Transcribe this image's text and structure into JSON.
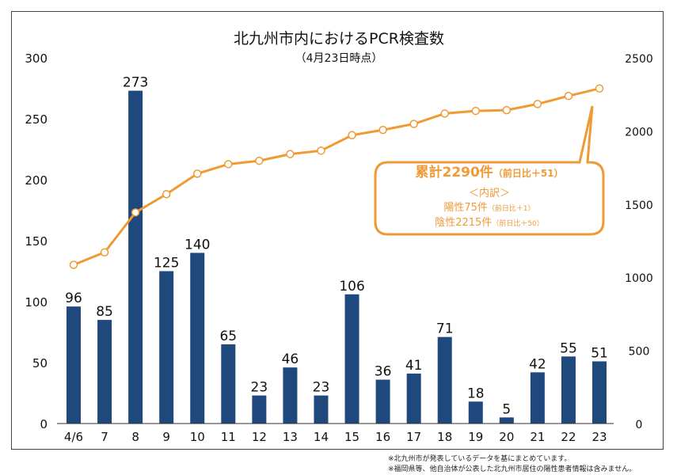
{
  "chart_data": {
    "type": "bar+line",
    "title": "北九州市内におけるPCR検査数",
    "subtitle": "（4月23日時点）",
    "categories": [
      "4/6",
      "7",
      "8",
      "9",
      "10",
      "11",
      "12",
      "13",
      "14",
      "15",
      "16",
      "17",
      "18",
      "19",
      "20",
      "21",
      "22",
      "23"
    ],
    "series": [
      {
        "name": "daily",
        "type": "bar",
        "axis": "left",
        "color": "#1f497d",
        "values": [
          96,
          85,
          273,
          125,
          140,
          65,
          23,
          46,
          23,
          106,
          36,
          41,
          71,
          18,
          5,
          42,
          55,
          51
        ]
      },
      {
        "name": "cumulative",
        "type": "line",
        "axis": "right",
        "color": "#f09a35",
        "values": [
          1085,
          1170,
          1443,
          1568,
          1708,
          1773,
          1796,
          1842,
          1865,
          1971,
          2007,
          2048,
          2119,
          2137,
          2142,
          2184,
          2239,
          2290
        ]
      }
    ],
    "left_axis": {
      "ylim": [
        0,
        300
      ],
      "ticks": [
        0,
        50,
        100,
        150,
        200,
        250,
        300
      ]
    },
    "right_axis": {
      "ylim": [
        0,
        2500
      ],
      "ticks": [
        0,
        500,
        1000,
        1500,
        2000,
        2500
      ]
    },
    "grid": false
  },
  "callout": {
    "total": "累計2290件",
    "total_diff": "（前日比＋51）",
    "breakdown": "＜内訳＞",
    "positive": "陽性75件",
    "positive_diff": "（前日比＋1）",
    "negative": "陰性2215件",
    "negative_diff": "（前日比＋50）"
  },
  "notes": [
    "※北九州市が発表しているデータを基にまとめています。",
    "※福岡県等、他自治体が公表した北九州市居住の陽性患者情報は含みません。"
  ]
}
